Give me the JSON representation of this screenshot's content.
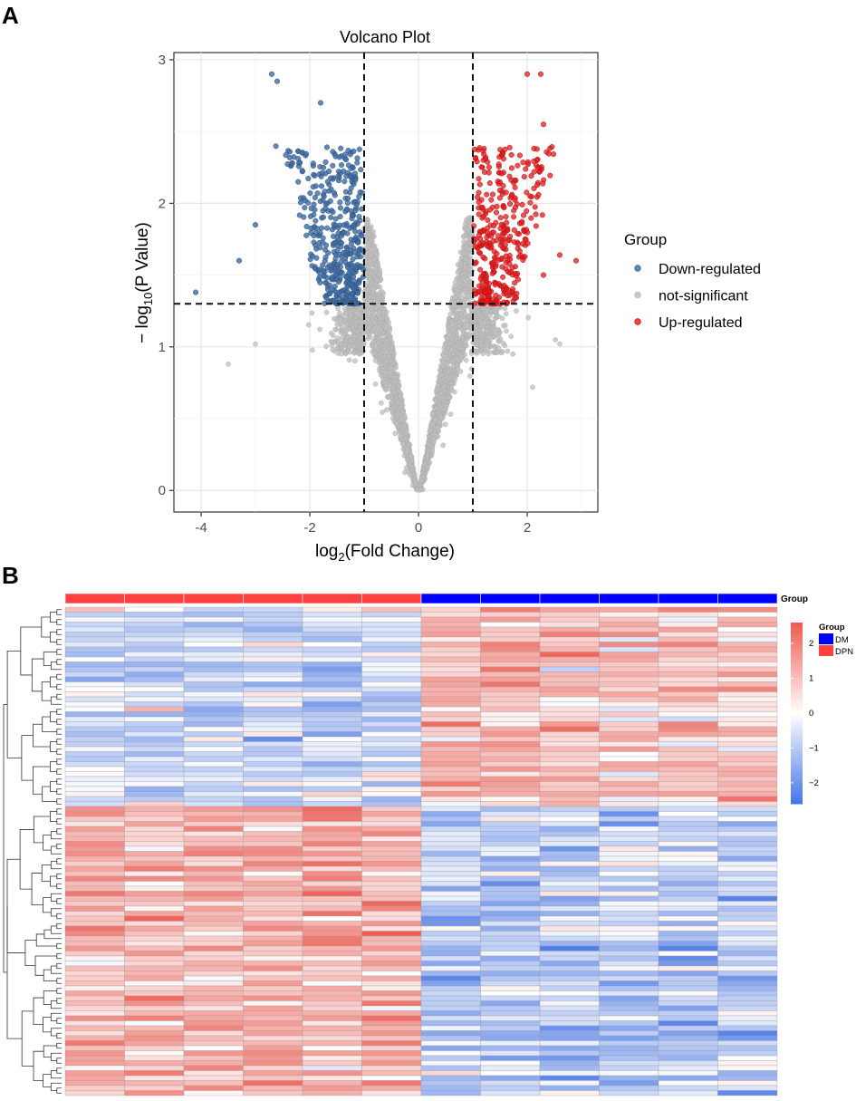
{
  "panels": {
    "a_label": "A",
    "b_label": "B"
  },
  "chart_data": [
    {
      "type": "scatter",
      "title": "Volcano Plot",
      "xlabel": "log2(Fold Change)",
      "ylabel": "-log10(P Value)",
      "xlim": [
        -4.5,
        3.3
      ],
      "ylim": [
        -0.15,
        3.05
      ],
      "x_ticks": [
        -4,
        -2,
        0,
        2
      ],
      "y_ticks": [
        0,
        1,
        2,
        3
      ],
      "thresholds": {
        "log2fc": [
          -1,
          1
        ],
        "neg_log10_p": 1.3
      },
      "grid": true,
      "legend": {
        "title": "Group",
        "position": "right",
        "entries": [
          {
            "name": "Down-regulated",
            "color": "#3d6ba3"
          },
          {
            "name": "not-significant",
            "color": "#bdbdbd"
          },
          {
            "name": "Up-regulated",
            "color": "#e31a1c"
          }
        ]
      },
      "series": [
        {
          "name": "Down-regulated",
          "n_points_approx": 650,
          "x_range": [
            -4.1,
            -1.0
          ],
          "y_range": [
            1.3,
            2.9
          ],
          "outliers": [
            [
              -4.1,
              1.38
            ],
            [
              -3.3,
              1.6
            ],
            [
              -3.0,
              1.85
            ],
            [
              -2.7,
              2.9
            ],
            [
              -2.6,
              2.85
            ],
            [
              -1.8,
              2.7
            ]
          ]
        },
        {
          "name": "not-significant",
          "n_points_approx": 8000,
          "x_range": [
            -3.5,
            2.6
          ],
          "y_range": [
            0.0,
            1.9
          ],
          "outliers": [
            [
              -3.5,
              0.88
            ],
            [
              -3.0,
              1.02
            ],
            [
              2.6,
              1.02
            ],
            [
              2.1,
              0.72
            ]
          ]
        },
        {
          "name": "Up-regulated",
          "n_points_approx": 520,
          "x_range": [
            1.0,
            2.9
          ],
          "y_range": [
            1.3,
            2.9
          ],
          "outliers": [
            [
              2.9,
              1.6
            ],
            [
              2.6,
              1.64
            ],
            [
              2.3,
              1.5
            ],
            [
              2.0,
              2.9
            ],
            [
              2.25,
              2.9
            ],
            [
              2.3,
              2.55
            ]
          ]
        }
      ]
    },
    {
      "type": "heatmap",
      "n_rows": 98,
      "columns": [
        {
          "group": "DPN"
        },
        {
          "group": "DPN"
        },
        {
          "group": "DPN"
        },
        {
          "group": "DPN"
        },
        {
          "group": "DPN"
        },
        {
          "group": "DPN"
        },
        {
          "group": "DM"
        },
        {
          "group": "DM"
        },
        {
          "group": "DM"
        },
        {
          "group": "DM"
        },
        {
          "group": "DM"
        },
        {
          "group": "DM"
        }
      ],
      "annotation_label": "Group",
      "annotation_legend": {
        "title": "Group",
        "entries": [
          {
            "name": "DM",
            "color": "#0000ff"
          },
          {
            "name": "DPN",
            "color": "#ff4040"
          }
        ]
      },
      "color_scale": {
        "low": "#4575e8",
        "mid": "#ffffff",
        "high": "#ef5a50",
        "range": [
          -2.6,
          2.6
        ],
        "ticks": [
          "2",
          "1",
          "0",
          "−1",
          "−2"
        ],
        "tick_values": [
          2,
          1,
          0,
          -1,
          -2
        ]
      },
      "row_clusters": [
        {
          "rows": 40,
          "dpn_mean": -0.7,
          "dm_mean": 0.9
        },
        {
          "rows": 58,
          "dpn_mean": 1.0,
          "dm_mean": -0.9
        }
      ],
      "xlabel": "",
      "ylabel": ""
    }
  ]
}
